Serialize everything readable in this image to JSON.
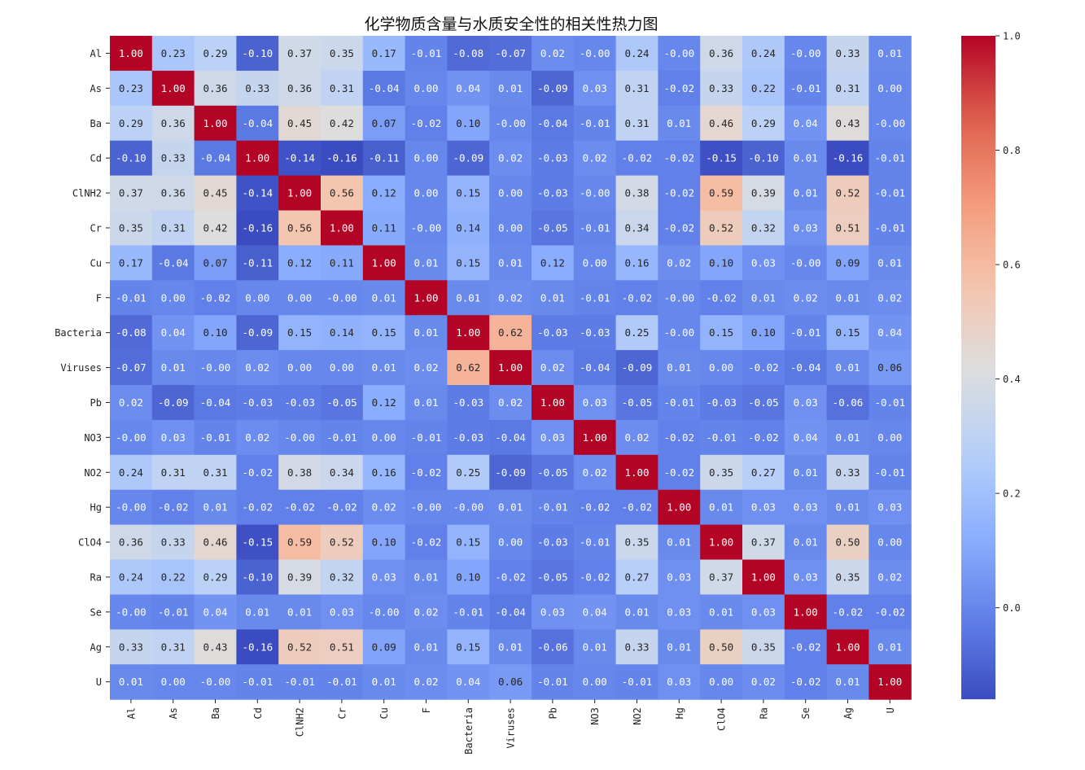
{
  "chart_data": {
    "type": "heatmap",
    "title": "化学物质含量与水质安全性的相关性热力图",
    "colormap": "coolwarm",
    "vmin": -0.16,
    "vmax": 1.0,
    "annotation_format": "0.00",
    "x_labels": [
      "Al",
      "As",
      "Ba",
      "Cd",
      "ClNH2",
      "Cr",
      "Cu",
      "F",
      "Bacteria",
      "Viruses",
      "Pb",
      "NO3",
      "NO2",
      "Hg",
      "ClO4",
      "Ra",
      "Se",
      "Ag",
      "U"
    ],
    "y_labels": [
      "Al",
      "As",
      "Ba",
      "Cd",
      "ClNH2",
      "Cr",
      "Cu",
      "F",
      "Bacteria",
      "Viruses",
      "Pb",
      "NO3",
      "NO2",
      "Hg",
      "ClO4",
      "Ra",
      "Se",
      "Ag",
      "U"
    ],
    "matrix": [
      [
        1.0,
        0.23,
        0.29,
        -0.1,
        0.37,
        0.35,
        0.17,
        -0.01,
        -0.08,
        -0.07,
        0.02,
        -0.0,
        0.24,
        -0.0,
        0.36,
        0.24,
        -0.0,
        0.33,
        0.01
      ],
      [
        0.23,
        1.0,
        0.36,
        0.33,
        0.36,
        0.31,
        -0.04,
        0.0,
        0.04,
        0.01,
        -0.09,
        0.03,
        0.31,
        -0.02,
        0.33,
        0.22,
        -0.01,
        0.31,
        0.0
      ],
      [
        0.29,
        0.36,
        1.0,
        -0.04,
        0.45,
        0.42,
        0.07,
        -0.02,
        0.1,
        -0.0,
        -0.04,
        -0.01,
        0.31,
        0.01,
        0.46,
        0.29,
        0.04,
        0.43,
        -0.0
      ],
      [
        -0.1,
        0.33,
        -0.04,
        1.0,
        -0.14,
        -0.16,
        -0.11,
        0.0,
        -0.09,
        0.02,
        -0.03,
        0.02,
        -0.02,
        -0.02,
        -0.15,
        -0.1,
        0.01,
        -0.16,
        -0.01
      ],
      [
        0.37,
        0.36,
        0.45,
        -0.14,
        1.0,
        0.56,
        0.12,
        0.0,
        0.15,
        0.0,
        -0.03,
        -0.0,
        0.38,
        -0.02,
        0.59,
        0.39,
        0.01,
        0.52,
        -0.01
      ],
      [
        0.35,
        0.31,
        0.42,
        -0.16,
        0.56,
        1.0,
        0.11,
        -0.0,
        0.14,
        0.0,
        -0.05,
        -0.01,
        0.34,
        -0.02,
        0.52,
        0.32,
        0.03,
        0.51,
        -0.01
      ],
      [
        0.17,
        -0.04,
        0.07,
        -0.11,
        0.12,
        0.11,
        1.0,
        0.01,
        0.15,
        0.01,
        0.12,
        0.0,
        0.16,
        0.02,
        0.1,
        0.03,
        -0.0,
        0.09,
        0.01
      ],
      [
        -0.01,
        0.0,
        -0.02,
        0.0,
        0.0,
        -0.0,
        0.01,
        1.0,
        0.01,
        0.02,
        0.01,
        -0.01,
        -0.02,
        -0.0,
        -0.02,
        0.01,
        0.02,
        0.01,
        0.02
      ],
      [
        -0.08,
        0.04,
        0.1,
        -0.09,
        0.15,
        0.14,
        0.15,
        0.01,
        1.0,
        0.62,
        -0.03,
        -0.03,
        0.25,
        -0.0,
        0.15,
        0.1,
        -0.01,
        0.15,
        0.04
      ],
      [
        -0.07,
        0.01,
        -0.0,
        0.02,
        0.0,
        0.0,
        0.01,
        0.02,
        0.62,
        1.0,
        0.02,
        -0.04,
        -0.09,
        0.01,
        0.0,
        -0.02,
        -0.04,
        0.01,
        0.06
      ],
      [
        0.02,
        -0.09,
        -0.04,
        -0.03,
        -0.03,
        -0.05,
        0.12,
        0.01,
        -0.03,
        0.02,
        1.0,
        0.03,
        -0.05,
        -0.01,
        -0.03,
        -0.05,
        0.03,
        -0.06,
        -0.01
      ],
      [
        -0.0,
        0.03,
        -0.01,
        0.02,
        -0.0,
        -0.01,
        0.0,
        -0.01,
        -0.03,
        -0.04,
        0.03,
        1.0,
        0.02,
        -0.02,
        -0.01,
        -0.02,
        0.04,
        0.01,
        0.0
      ],
      [
        0.24,
        0.31,
        0.31,
        -0.02,
        0.38,
        0.34,
        0.16,
        -0.02,
        0.25,
        -0.09,
        -0.05,
        0.02,
        1.0,
        -0.02,
        0.35,
        0.27,
        0.01,
        0.33,
        -0.01
      ],
      [
        -0.0,
        -0.02,
        0.01,
        -0.02,
        -0.02,
        -0.02,
        0.02,
        -0.0,
        -0.0,
        0.01,
        -0.01,
        -0.02,
        -0.02,
        1.0,
        0.01,
        0.03,
        0.03,
        0.01,
        0.03
      ],
      [
        0.36,
        0.33,
        0.46,
        -0.15,
        0.59,
        0.52,
        0.1,
        -0.02,
        0.15,
        0.0,
        -0.03,
        -0.01,
        0.35,
        0.01,
        1.0,
        0.37,
        0.01,
        0.5,
        0.0
      ],
      [
        0.24,
        0.22,
        0.29,
        -0.1,
        0.39,
        0.32,
        0.03,
        0.01,
        0.1,
        -0.02,
        -0.05,
        -0.02,
        0.27,
        0.03,
        0.37,
        1.0,
        0.03,
        0.35,
        0.02
      ],
      [
        -0.0,
        -0.01,
        0.04,
        0.01,
        0.01,
        0.03,
        -0.0,
        0.02,
        -0.01,
        -0.04,
        0.03,
        0.04,
        0.01,
        0.03,
        0.01,
        0.03,
        1.0,
        -0.02,
        -0.02
      ],
      [
        0.33,
        0.31,
        0.43,
        -0.16,
        0.52,
        0.51,
        0.09,
        0.01,
        0.15,
        0.01,
        -0.06,
        0.01,
        0.33,
        0.01,
        0.5,
        0.35,
        -0.02,
        1.0,
        0.01
      ],
      [
        0.01,
        0.0,
        -0.0,
        -0.01,
        -0.01,
        -0.01,
        0.01,
        0.02,
        0.04,
        0.06,
        -0.01,
        0.0,
        -0.01,
        0.03,
        0.0,
        0.02,
        -0.02,
        0.01,
        1.0
      ]
    ],
    "colorbar": {
      "ticks": [
        0.0,
        0.2,
        0.4,
        0.6,
        0.8,
        1.0
      ],
      "tick_labels": [
        "0.0",
        "0.2",
        "0.4",
        "0.6",
        "0.8",
        "1.0"
      ]
    }
  }
}
